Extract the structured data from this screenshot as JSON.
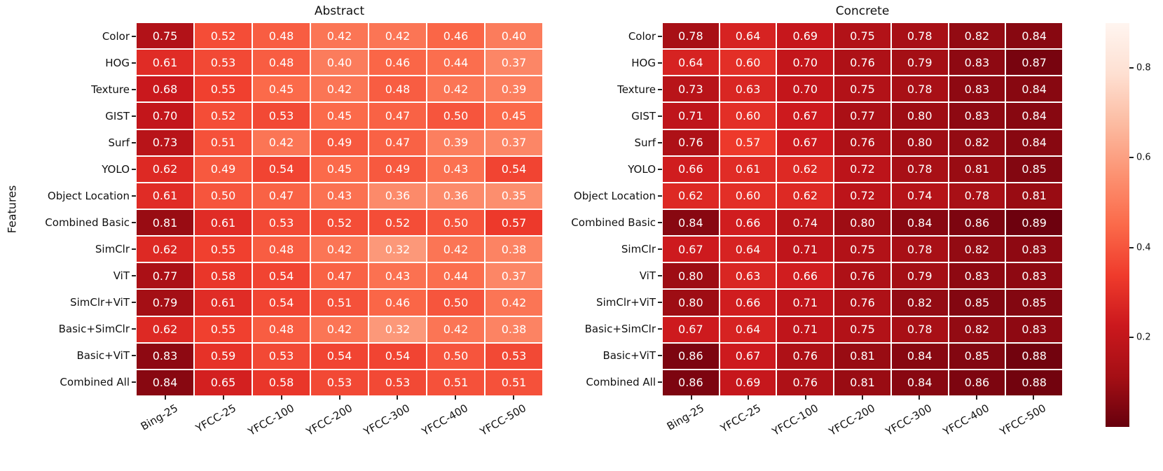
{
  "figure": {
    "ylabel": "Features"
  },
  "chart_data": [
    {
      "type": "heatmap",
      "title": "Abstract",
      "ylabel": "Features",
      "x_categories": [
        "Bing-25",
        "YFCC-25",
        "YFCC-100",
        "YFCC-200",
        "YFCC-300",
        "YFCC-400",
        "YFCC-500"
      ],
      "y_categories": [
        "Color",
        "HOG",
        "Texture",
        "GIST",
        "Surf",
        "YOLO",
        "Object Location",
        "Combined Basic",
        "SimClr",
        "ViT",
        "SimClr+ViT",
        "Basic+SimClr",
        "Basic+ViT",
        "Combined All"
      ],
      "values": [
        [
          0.75,
          0.52,
          0.48,
          0.42,
          0.42,
          0.46,
          0.4
        ],
        [
          0.61,
          0.53,
          0.48,
          0.4,
          0.46,
          0.44,
          0.37
        ],
        [
          0.68,
          0.55,
          0.45,
          0.42,
          0.48,
          0.42,
          0.39
        ],
        [
          0.7,
          0.52,
          0.53,
          0.45,
          0.47,
          0.5,
          0.45
        ],
        [
          0.73,
          0.51,
          0.42,
          0.49,
          0.47,
          0.39,
          0.37
        ],
        [
          0.62,
          0.49,
          0.54,
          0.45,
          0.49,
          0.43,
          0.54
        ],
        [
          0.61,
          0.5,
          0.47,
          0.43,
          0.36,
          0.36,
          0.35
        ],
        [
          0.81,
          0.61,
          0.53,
          0.52,
          0.52,
          0.5,
          0.57
        ],
        [
          0.62,
          0.55,
          0.48,
          0.42,
          0.32,
          0.42,
          0.38
        ],
        [
          0.77,
          0.58,
          0.54,
          0.47,
          0.43,
          0.44,
          0.37
        ],
        [
          0.79,
          0.61,
          0.54,
          0.51,
          0.46,
          0.5,
          0.42
        ],
        [
          0.62,
          0.55,
          0.48,
          0.42,
          0.32,
          0.42,
          0.38
        ],
        [
          0.83,
          0.59,
          0.53,
          0.54,
          0.54,
          0.5,
          0.53
        ],
        [
          0.84,
          0.65,
          0.58,
          0.53,
          0.53,
          0.51,
          0.51
        ]
      ],
      "annotations": true,
      "annotation_format": "2-decimals",
      "annotation_color": "#ffffff",
      "colormap": "Reds",
      "vmin": 0.0,
      "vmax": 0.9
    },
    {
      "type": "heatmap",
      "title": "Concrete",
      "x_categories": [
        "Bing-25",
        "YFCC-25",
        "YFCC-100",
        "YFCC-200",
        "YFCC-300",
        "YFCC-400",
        "YFCC-500"
      ],
      "y_categories": [
        "Color",
        "HOG",
        "Texture",
        "GIST",
        "Surf",
        "YOLO",
        "Object Location",
        "Combined Basic",
        "SimClr",
        "ViT",
        "SimClr+ViT",
        "Basic+SimClr",
        "Basic+ViT",
        "Combined All"
      ],
      "values": [
        [
          0.78,
          0.64,
          0.69,
          0.75,
          0.78,
          0.82,
          0.84
        ],
        [
          0.64,
          0.6,
          0.7,
          0.76,
          0.79,
          0.83,
          0.87
        ],
        [
          0.73,
          0.63,
          0.7,
          0.75,
          0.78,
          0.83,
          0.84
        ],
        [
          0.71,
          0.6,
          0.67,
          0.77,
          0.8,
          0.83,
          0.84
        ],
        [
          0.76,
          0.57,
          0.67,
          0.76,
          0.8,
          0.82,
          0.84
        ],
        [
          0.66,
          0.61,
          0.62,
          0.72,
          0.78,
          0.81,
          0.85
        ],
        [
          0.62,
          0.6,
          0.62,
          0.72,
          0.74,
          0.78,
          0.81
        ],
        [
          0.84,
          0.66,
          0.74,
          0.8,
          0.84,
          0.86,
          0.89
        ],
        [
          0.67,
          0.64,
          0.71,
          0.75,
          0.78,
          0.82,
          0.83
        ],
        [
          0.8,
          0.63,
          0.66,
          0.76,
          0.79,
          0.83,
          0.83
        ],
        [
          0.8,
          0.66,
          0.71,
          0.76,
          0.82,
          0.85,
          0.85
        ],
        [
          0.67,
          0.64,
          0.71,
          0.75,
          0.78,
          0.82,
          0.83
        ],
        [
          0.86,
          0.67,
          0.76,
          0.81,
          0.84,
          0.85,
          0.88
        ],
        [
          0.86,
          0.69,
          0.76,
          0.81,
          0.84,
          0.86,
          0.88
        ]
      ],
      "annotations": true,
      "annotation_format": "2-decimals",
      "annotation_color": "#ffffff",
      "colormap": "Reds",
      "vmin": 0.0,
      "vmax": 0.9
    }
  ],
  "colorbar": {
    "tick_labels": [
      "0.8",
      "0.6",
      "0.4",
      "0.2"
    ],
    "tick_values": [
      0.8,
      0.6,
      0.4,
      0.2
    ],
    "vmin": 0.0,
    "vmax": 0.9,
    "colormap": "Reds",
    "colormap_anchors": [
      "#fff5f0",
      "#fee0d2",
      "#fcbba1",
      "#fc9272",
      "#fb6a4a",
      "#ef3b2c",
      "#cb181d",
      "#a50f15",
      "#67000d"
    ]
  }
}
